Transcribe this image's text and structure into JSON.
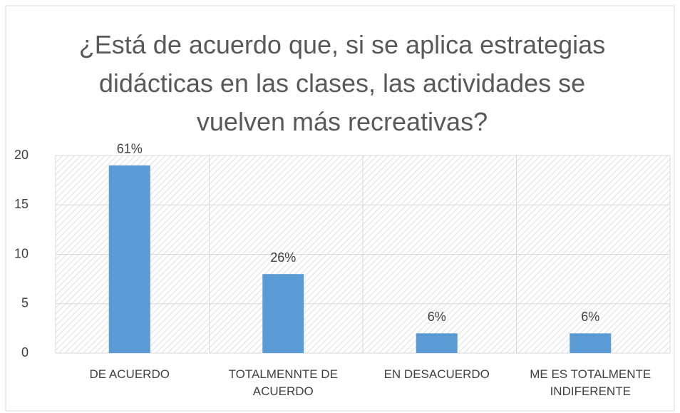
{
  "chart_data": {
    "type": "bar",
    "title": "¿Está de acuerdo que, si se aplica estrategias didácticas en las clases, las actividades se vuelven más recreativas?",
    "categories": [
      "DE ACUERDO",
      "TOTALMENNTE DE ACUERDO",
      "EN DESACUERDO",
      "ME ES TOTALMENTE INDIFERENTE"
    ],
    "values": [
      19,
      8,
      2,
      2
    ],
    "value_labels": [
      "61%",
      "26%",
      "6%",
      "6%"
    ],
    "color": "#5b9bd5",
    "ylim": [
      0,
      20
    ],
    "yticks": [
      0,
      5,
      10,
      15,
      20
    ],
    "grid": true
  }
}
